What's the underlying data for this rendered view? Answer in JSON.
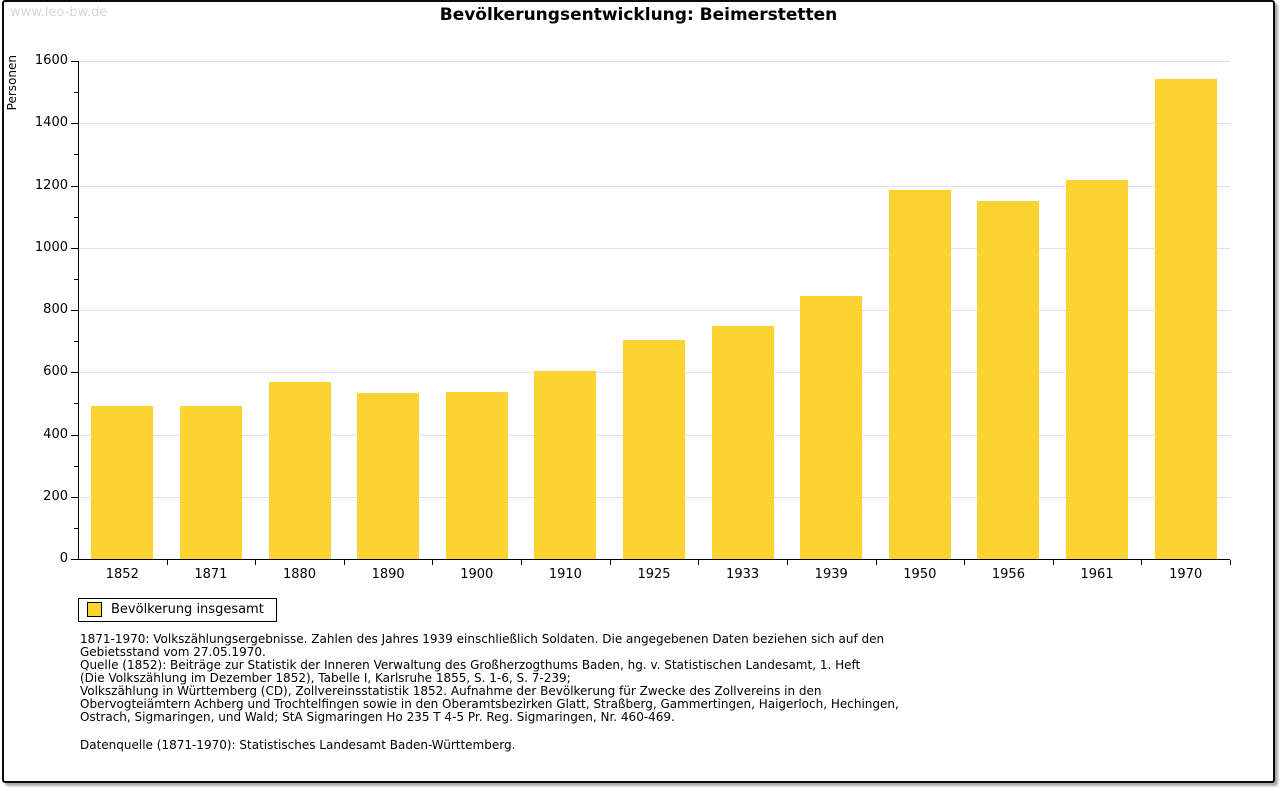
{
  "watermark": "www.leo-bw.de",
  "title": "Bevölkerungsentwicklung: Beimerstetten",
  "chart_data": {
    "type": "bar",
    "title": "Bevölkerungsentwicklung: Beimerstetten",
    "categories": [
      "1852",
      "1871",
      "1880",
      "1890",
      "1900",
      "1910",
      "1925",
      "1933",
      "1939",
      "1950",
      "1956",
      "1961",
      "1970"
    ],
    "values": [
      493,
      493,
      570,
      533,
      537,
      605,
      704,
      748,
      845,
      1186,
      1150,
      1218,
      1543
    ],
    "xlabel": "",
    "ylabel": "Personen",
    "ylim": [
      0,
      1600
    ],
    "yticks": [
      0,
      200,
      400,
      600,
      800,
      1000,
      1200,
      1400,
      1600
    ],
    "minor_ytick_step": 100,
    "grid": true,
    "legend_position": "bottom-left",
    "series_name": "Bevölkerung insgesamt"
  },
  "legend": {
    "label": "Bevölkerung insgesamt"
  },
  "colors": {
    "bar": "#FCD330",
    "grid": "#e2e2e2",
    "axis": "#000000",
    "watermark": "#d7d7d7"
  },
  "footnotes": {
    "lines": [
      "1871-1970: Volkszählungsergebnisse. Zahlen des Jahres 1939 einschließlich Soldaten. Die angegebenen Daten beziehen sich auf den",
      "Gebietsstand vom 27.05.1970.",
      "Quelle (1852): Beiträge zur Statistik der Inneren Verwaltung des Großherzogthums Baden, hg. v. Statistischen Landesamt, 1. Heft",
      "(Die Volkszählung im Dezember 1852), Tabelle I, Karlsruhe 1855, S. 1-6, S. 7-239;",
      "Volkszählung in Württemberg (CD), Zollvereinsstatistik 1852. Aufnahme der Bevölkerung für Zwecke des Zollvereins in den",
      "Obervogteiämtern Achberg und Trochtelfingen sowie in den Oberamtsbezirken Glatt, Straßberg, Gammertingen, Haigerloch, Hechingen,",
      "Ostrach, Sigmaringen, und Wald; StA Sigmaringen Ho 235 T 4-5 Pr. Reg. Sigmaringen, Nr. 460-469."
    ],
    "datasource": "Datenquelle (1871-1970): Statistisches Landesamt Baden-Württemberg."
  }
}
